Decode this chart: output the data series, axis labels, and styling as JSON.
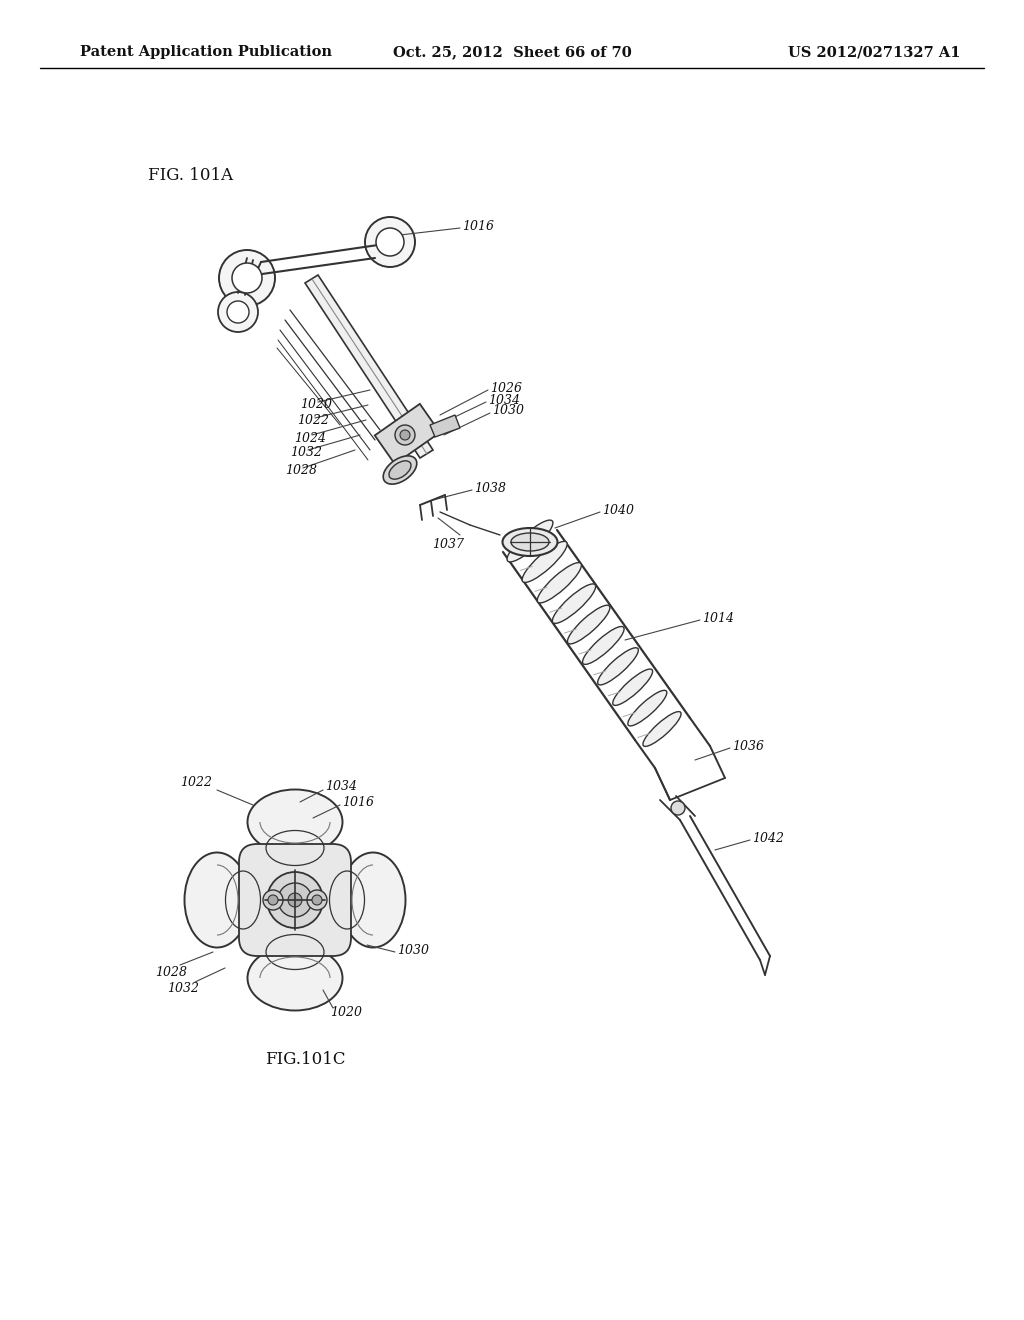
{
  "bg_color": "#ffffff",
  "header_left": "Patent Application Publication",
  "header_center": "Oct. 25, 2012  Sheet 66 of 70",
  "header_right": "US 2012/0271327 A1",
  "fig_label_A": "FIG. 101A",
  "fig_label_C": "FIG.101C",
  "line_color": "#333333",
  "text_color": "#111111",
  "header_font_size": 10.5,
  "label_font_size": 9,
  "fig_label_font_size": 12
}
